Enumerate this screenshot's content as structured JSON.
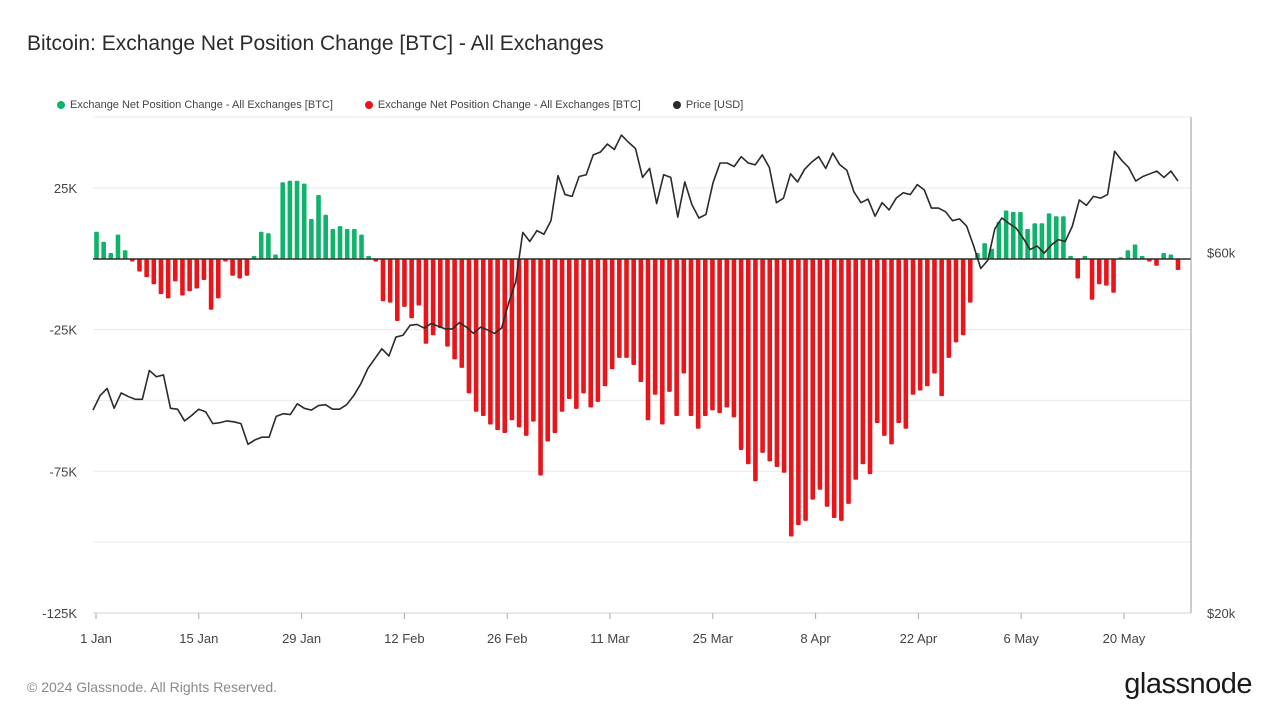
{
  "title": "Bitcoin: Exchange Net Position Change [BTC] - All Exchanges",
  "legend": [
    {
      "label": "Exchange Net Position Change - All Exchanges [BTC]",
      "color": "#0fb36b"
    },
    {
      "label": "Exchange Net Position Change - All Exchanges [BTC]",
      "color": "#e8151b"
    },
    {
      "label": "Price [USD]",
      "color": "#2b2b2b"
    }
  ],
  "footer": "© 2024 Glassnode. All Rights Reserved.",
  "logo": "glassnode",
  "chart_data": {
    "type": "bar",
    "x_ticks": [
      "1 Jan",
      "15 Jan",
      "29 Jan",
      "12 Feb",
      "26 Feb",
      "11 Mar",
      "25 Mar",
      "8 Apr",
      "22 Apr",
      "6 May",
      "20 May"
    ],
    "y_ticks": [
      "25K",
      "-25K",
      "-75K",
      "-125K"
    ],
    "y_right_ticks": [
      "$60k",
      "$20k"
    ],
    "ylim": [
      -125000,
      50000
    ],
    "y_right_lim": [
      20000,
      75000
    ],
    "grid": true,
    "legend_position": "top-left",
    "colors": {
      "positive": "#0fb36b",
      "negative": "#e8151b",
      "price": "#2b2b2b"
    },
    "series": [
      {
        "name": "Exchange Net Position Change - All Exchanges [BTC]",
        "unit": "BTC",
        "values": [
          9500,
          6000,
          2000,
          8500,
          3000,
          -1000,
          -4500,
          -6500,
          -9000,
          -12500,
          -14000,
          -8000,
          -13000,
          -11500,
          -10500,
          -7500,
          -18000,
          -14000,
          -1000,
          -6000,
          -7000,
          -6000,
          1000,
          9500,
          9000,
          1500,
          27000,
          27500,
          27500,
          26500,
          14000,
          22500,
          15500,
          10500,
          11500,
          10500,
          10500,
          8500,
          1000,
          -1000,
          -15000,
          -15500,
          -22000,
          -17000,
          -21000,
          -16500,
          -30000,
          -27000,
          -24500,
          -31000,
          -35500,
          -38500,
          -47500,
          -54000,
          -55500,
          -58500,
          -60500,
          -61500,
          -57000,
          -59500,
          -62500,
          -57500,
          -76500,
          -64500,
          -61500,
          -54000,
          -49500,
          -53000,
          -47500,
          -52500,
          -50500,
          -45000,
          -39000,
          -35000,
          -35000,
          -37500,
          -43500,
          -57000,
          -48000,
          -58500,
          -47000,
          -55500,
          -40500,
          -55500,
          -60000,
          -55500,
          -53500,
          -54500,
          -52500,
          -56000,
          -67500,
          -72500,
          -78500,
          -68500,
          -71500,
          -73500,
          -75500,
          -98000,
          -94000,
          -92500,
          -85000,
          -81500,
          -87500,
          -91500,
          -92500,
          -86500,
          -78000,
          -72500,
          -76000,
          -58000,
          -62500,
          -65500,
          -58000,
          -60000,
          -48000,
          -46500,
          -45000,
          -40500,
          -48500,
          -35000,
          -29500,
          -27000,
          -15500,
          2000,
          5500,
          3500,
          13000,
          17000,
          16500,
          16500,
          10500,
          12500,
          12500,
          16000,
          15000,
          15000,
          1000,
          -7000,
          1000,
          -14500,
          -9000,
          -9500,
          -12000,
          500,
          3000,
          5000,
          1000,
          -1000,
          -2500,
          2000,
          1500,
          -4000
        ]
      },
      {
        "name": "Price [USD]",
        "unit": "USD",
        "values": [
          42500,
          44100,
          44900,
          42700,
          44400,
          44000,
          43700,
          43700,
          46900,
          46200,
          46400,
          42700,
          42600,
          41300,
          41900,
          42600,
          42300,
          41000,
          41100,
          41300,
          41200,
          41000,
          38700,
          39200,
          39500,
          39500,
          41800,
          42100,
          42000,
          43200,
          42700,
          42500,
          43000,
          43100,
          42600,
          42600,
          43100,
          44100,
          45400,
          47100,
          48200,
          49300,
          48500,
          50600,
          50800,
          51900,
          52000,
          51600,
          52100,
          51800,
          51500,
          51500,
          52200,
          51700,
          51000,
          51700,
          51400,
          51000,
          51600,
          54400,
          56700,
          62200,
          61200,
          62400,
          62000,
          63500,
          68500,
          66400,
          66200,
          68400,
          68600,
          70800,
          71100,
          72000,
          71400,
          73000,
          72200,
          71500,
          68300,
          69300,
          65400,
          68600,
          68300,
          63900,
          67800,
          65300,
          63800,
          64200,
          67700,
          69900,
          69900,
          69500,
          70600,
          69900,
          69700,
          70800,
          69400,
          65500,
          66000,
          68700,
          67800,
          69200,
          70000,
          70600,
          69300,
          71000,
          69700,
          69100,
          66700,
          65500,
          65900,
          64000,
          65500,
          64700,
          66000,
          66600,
          66400,
          67500,
          66900,
          64900,
          64900,
          64500,
          63500,
          63700,
          62900,
          60700,
          58200,
          59100,
          62600,
          63800,
          63200,
          62700,
          61600,
          60300,
          60700,
          59900,
          60800,
          61400,
          61200,
          62900,
          65800,
          65200,
          66200,
          66000,
          66400,
          71200,
          70200,
          69400,
          67900,
          68400,
          68700,
          69000,
          68300,
          69000,
          67900
        ]
      }
    ]
  }
}
